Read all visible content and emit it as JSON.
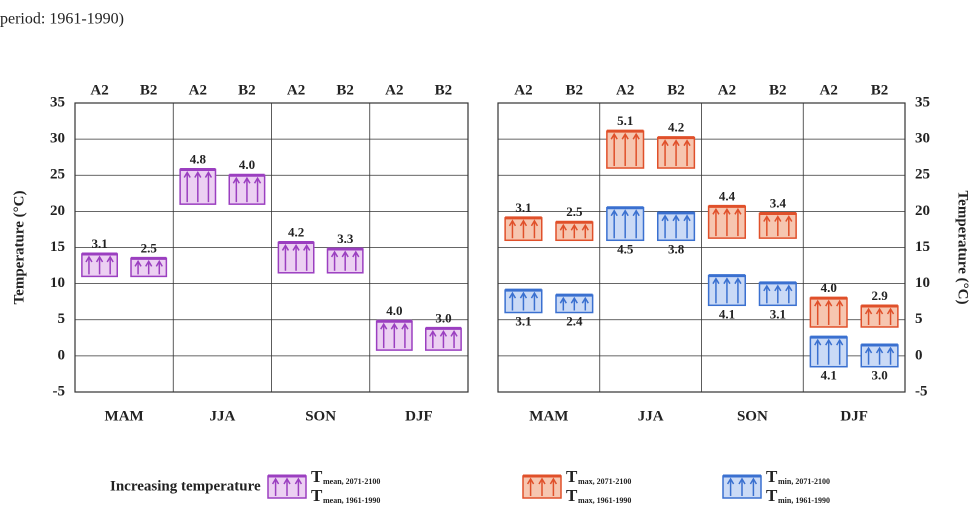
{
  "caption": "period: 1961-1990)",
  "legend": {
    "title": "Increasing temperature",
    "items": [
      {
        "symbol": "T",
        "top": "mean, 2071-2100",
        "bottom": "mean, 1961-1990"
      },
      {
        "symbol": "T",
        "top": "max, 2071-2100",
        "bottom": "max, 1961-1990"
      },
      {
        "symbol": "T",
        "top": "min, 2071-2100",
        "bottom": "min, 1961-1990"
      }
    ]
  },
  "chart_data": [
    {
      "type": "floating_bar",
      "ylabel": "Temperature (°C)",
      "yaxis": "left",
      "ylim": [
        -5,
        35
      ],
      "yticks": [
        -5,
        0,
        5,
        10,
        15,
        20,
        25,
        30,
        35
      ],
      "categories": [
        "MAM",
        "JJA",
        "SON",
        "DJF"
      ],
      "scenarios": [
        "A2",
        "B2"
      ],
      "series": [
        {
          "name": "mean",
          "color": "#9b3fc0",
          "fill": "#ecd0f2",
          "label_pos": "above",
          "base": [
            11,
            21,
            11.5,
            0.8
          ],
          "values": [
            [
              3.1,
              4.8,
              4.2,
              4.0
            ],
            [
              2.5,
              4.0,
              3.3,
              3.0
            ]
          ],
          "value_labels": [
            [
              "3.1",
              "4.8",
              "4.2",
              "4.0"
            ],
            [
              "2.5",
              "4.0",
              "3.3",
              "3.0"
            ]
          ]
        }
      ]
    },
    {
      "type": "floating_bar",
      "ylabel": "Temperature (°C)",
      "yaxis": "right",
      "ylim": [
        -5,
        35
      ],
      "yticks": [
        -5,
        0,
        5,
        10,
        15,
        20,
        25,
        30,
        35
      ],
      "categories": [
        "MAM",
        "JJA",
        "SON",
        "DJF"
      ],
      "scenarios": [
        "A2",
        "B2"
      ],
      "series": [
        {
          "name": "max",
          "color": "#e0502a",
          "fill": "#f6c6b0",
          "label_pos": "above",
          "base": [
            16,
            26,
            16.3,
            4
          ],
          "values": [
            [
              3.1,
              5.1,
              4.4,
              4.0
            ],
            [
              2.5,
              4.2,
              3.4,
              2.9
            ]
          ],
          "value_labels": [
            [
              "3.1",
              "5.1",
              "4.4",
              "4.0"
            ],
            [
              "2.5",
              "4.2",
              "3.4",
              "2.9"
            ]
          ]
        },
        {
          "name": "min",
          "color": "#3a70d0",
          "fill": "#cadaf6",
          "label_pos": "below",
          "base": [
            6,
            16,
            7,
            -1.5
          ],
          "values": [
            [
              3.1,
              4.5,
              4.1,
              4.1
            ],
            [
              2.4,
              3.8,
              3.1,
              3.0
            ]
          ],
          "value_labels": [
            [
              "3.1",
              "4.5",
              "4.1",
              "4.1"
            ],
            [
              "2.4",
              "3.8",
              "3.1",
              "3.0"
            ]
          ]
        }
      ]
    }
  ]
}
